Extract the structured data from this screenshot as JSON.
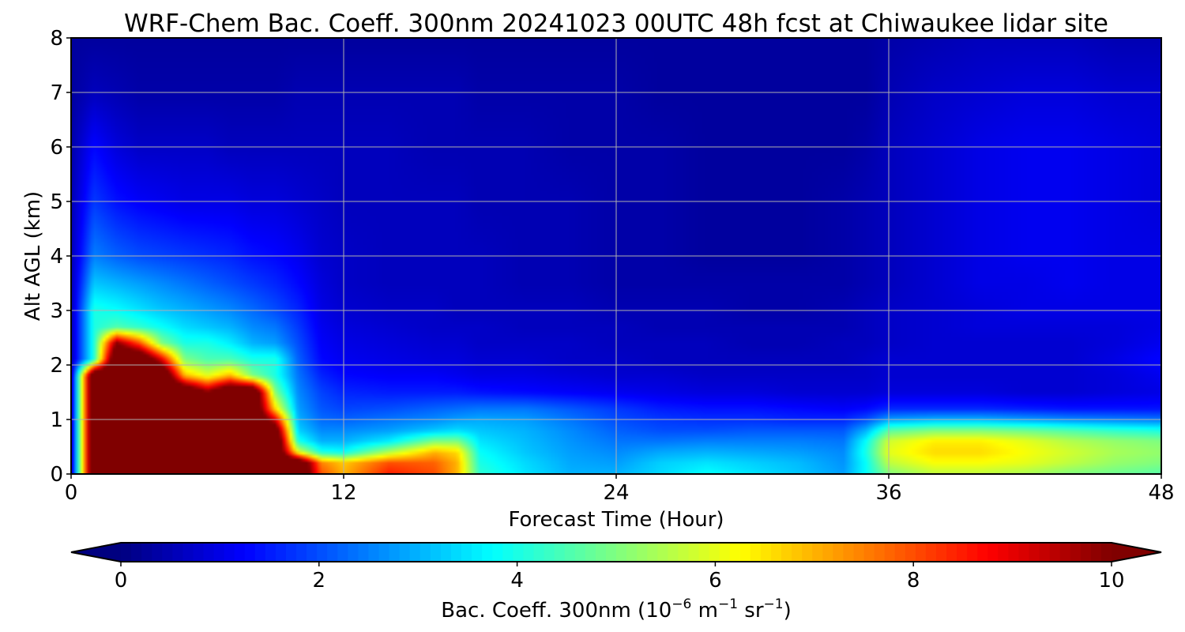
{
  "chart_data": {
    "type": "heatmap",
    "title": "WRF-Chem Bac. Coeff. 300nm  20241023 00UTC 48h fcst at Chiwaukee lidar site",
    "xlabel": "Forecast Time (Hour)",
    "ylabel": "Alt AGL (km)",
    "xlim": [
      0,
      48
    ],
    "ylim": [
      0,
      8
    ],
    "xticks": [
      0,
      12,
      24,
      36,
      48
    ],
    "yticks": [
      0,
      1,
      2,
      3,
      4,
      5,
      6,
      7,
      8
    ],
    "grid": true,
    "colormap": "jet",
    "colorbar": {
      "label_main": "Bac. Coeff. 300nm  (10",
      "label_exp1": "−6",
      "label_mid": " m",
      "label_exp2": "−1",
      "label_mid2": " sr",
      "label_exp3": "−1",
      "label_end": ")",
      "range": [
        0,
        10
      ],
      "ticks": [
        0,
        2,
        4,
        6,
        8,
        10
      ],
      "extend": "both",
      "orientation": "horizontal"
    },
    "x": [
      0,
      1,
      2,
      3,
      4,
      5,
      6,
      7,
      8,
      9,
      10,
      11,
      12,
      14,
      16,
      17,
      18,
      20,
      22,
      24,
      26,
      28,
      30,
      32,
      34,
      35,
      36,
      38,
      40,
      42,
      44,
      46,
      48
    ],
    "y": [
      0,
      0.2,
      0.4,
      0.6,
      0.8,
      1.0,
      1.2,
      1.5,
      1.8,
      2.1,
      2.4,
      2.7,
      3.0,
      3.5,
      4.0,
      5.0,
      6.0,
      7.0,
      8.0
    ],
    "z": [
      [
        0.5,
        12,
        12,
        12,
        12,
        12,
        12,
        12,
        12,
        12,
        12,
        8,
        7,
        8.5,
        8,
        7,
        4.2,
        3.5,
        3,
        3,
        3.4,
        3.8,
        3.5,
        3.2,
        2.8,
        3.8,
        5,
        5.6,
        5.6,
        5.4,
        5,
        4.8,
        4.6
      ],
      [
        0.5,
        12,
        12,
        12,
        12,
        12,
        12,
        12,
        12,
        12,
        12,
        7.5,
        6.8,
        8,
        7.8,
        7,
        4,
        3.4,
        2.9,
        2.8,
        3.3,
        3.5,
        3.3,
        3.1,
        2.7,
        3.8,
        5.6,
        6.2,
        6.2,
        6,
        5.6,
        5.2,
        5
      ],
      [
        0.5,
        12,
        12,
        12,
        12,
        12,
        12,
        12,
        12,
        12,
        6,
        4,
        3.8,
        5.5,
        7,
        6.6,
        3.8,
        3.2,
        2.8,
        2.6,
        2.9,
        3,
        2.9,
        2.8,
        2.6,
        4,
        6,
        6.6,
        6.6,
        6.2,
        5.8,
        5.4,
        5.2
      ],
      [
        0.5,
        12,
        12,
        12,
        12,
        12,
        12,
        12,
        12,
        12,
        4,
        3,
        3,
        3.6,
        5,
        5,
        3.5,
        3.1,
        2.7,
        2.4,
        2.4,
        2.5,
        2.5,
        2.5,
        2.4,
        3.8,
        5.8,
        6.4,
        6.4,
        6,
        5.5,
        5.2,
        5
      ],
      [
        0.5,
        12,
        12,
        12,
        12,
        12,
        12,
        12,
        12,
        11,
        3.3,
        2.6,
        2.6,
        2.8,
        3.2,
        3.4,
        3.2,
        3,
        2.6,
        2.2,
        2,
        2,
        2.1,
        2.1,
        2.1,
        3,
        4.6,
        5,
        5,
        4.8,
        4.5,
        4.2,
        4
      ],
      [
        0.5,
        12,
        12,
        12,
        12,
        12,
        12,
        12,
        12,
        9,
        3,
        2.3,
        2.2,
        2.4,
        2.6,
        2.8,
        2.9,
        2.8,
        2.4,
        2,
        1.8,
        1.7,
        1.7,
        1.6,
        1.6,
        2,
        2.8,
        3,
        3,
        2.8,
        2.6,
        2.5,
        2.4
      ],
      [
        0.5,
        12,
        12,
        12,
        12,
        12,
        12,
        12,
        12,
        6.5,
        2.8,
        2.1,
        1.9,
        2,
        2.2,
        2.3,
        2.4,
        2.4,
        2.1,
        1.8,
        1.5,
        1.4,
        1.4,
        1.3,
        1.2,
        1.3,
        1.6,
        1.6,
        1.6,
        1.5,
        1.4,
        1.4,
        1.4
      ],
      [
        0.5,
        12,
        12,
        12,
        12,
        12,
        10,
        12,
        12,
        5,
        2.6,
        1.9,
        1.6,
        1.5,
        1.5,
        1.5,
        1.4,
        1.3,
        1.2,
        1.1,
        1,
        0.9,
        0.9,
        0.8,
        0.8,
        0.8,
        0.9,
        0.9,
        0.9,
        0.8,
        0.8,
        0.9,
        1
      ],
      [
        0.5,
        12,
        12,
        12,
        12,
        7,
        6,
        7,
        5,
        4,
        2.4,
        1.6,
        1.3,
        1.2,
        1.2,
        1.1,
        1,
        1,
        0.9,
        0.8,
        0.8,
        0.7,
        0.7,
        0.7,
        0.7,
        0.7,
        0.8,
        0.8,
        0.8,
        0.8,
        0.8,
        0.9,
        1.1
      ],
      [
        0.5,
        4,
        12,
        12,
        9,
        5,
        4.5,
        4.5,
        4,
        4,
        2.2,
        1.3,
        1.1,
        1,
        0.9,
        0.9,
        0.8,
        0.8,
        0.7,
        0.7,
        0.6,
        0.6,
        0.6,
        0.6,
        0.6,
        0.7,
        0.8,
        0.8,
        0.8,
        0.8,
        0.8,
        1,
        1.3
      ],
      [
        0.5,
        4,
        10,
        8,
        5,
        4,
        4,
        3.6,
        3,
        2.8,
        2,
        1.2,
        1,
        0.9,
        0.8,
        0.8,
        0.7,
        0.7,
        0.7,
        0.6,
        0.6,
        0.6,
        0.5,
        0.5,
        0.6,
        0.6,
        0.7,
        0.8,
        0.8,
        0.8,
        0.8,
        0.9,
        1.1
      ],
      [
        0.5,
        4,
        4.5,
        4.2,
        3.8,
        3.4,
        3.2,
        3,
        2.6,
        2.4,
        1.8,
        1.1,
        0.9,
        0.8,
        0.7,
        0.7,
        0.7,
        0.6,
        0.6,
        0.6,
        0.5,
        0.5,
        0.5,
        0.5,
        0.5,
        0.6,
        0.7,
        0.8,
        0.9,
        0.9,
        0.9,
        0.9,
        1
      ],
      [
        0.5,
        4,
        3.8,
        3.5,
        3.2,
        3,
        2.8,
        2.6,
        2.3,
        2,
        1.6,
        1,
        0.8,
        0.7,
        0.7,
        0.6,
        0.6,
        0.6,
        0.6,
        0.5,
        0.5,
        0.5,
        0.4,
        0.4,
        0.5,
        0.6,
        0.7,
        0.8,
        0.9,
        1,
        1,
        1,
        1
      ],
      [
        0.5,
        3.2,
        3,
        2.8,
        2.6,
        2.4,
        2.2,
        2,
        1.8,
        1.6,
        1.3,
        0.9,
        0.7,
        0.6,
        0.6,
        0.6,
        0.6,
        0.5,
        0.5,
        0.4,
        0.4,
        0.4,
        0.4,
        0.4,
        0.4,
        0.5,
        0.6,
        0.8,
        1,
        1,
        1.1,
        1,
        1
      ],
      [
        0.5,
        2.5,
        2.2,
        2,
        1.9,
        1.8,
        1.7,
        1.6,
        1.4,
        1.3,
        1.1,
        0.8,
        0.7,
        0.6,
        0.6,
        0.6,
        0.6,
        0.5,
        0.5,
        0.4,
        0.4,
        0.3,
        0.3,
        0.3,
        0.4,
        0.5,
        0.6,
        0.8,
        1,
        1.1,
        1.1,
        1,
        1
      ],
      [
        0.5,
        1.8,
        1.4,
        1.2,
        1.1,
        1,
        1,
        1,
        0.9,
        0.9,
        0.8,
        0.7,
        0.6,
        0.6,
        0.6,
        0.6,
        0.5,
        0.5,
        0.5,
        0.4,
        0.4,
        0.3,
        0.3,
        0.3,
        0.4,
        0.5,
        0.6,
        0.8,
        1,
        1.1,
        1.1,
        1,
        0.9
      ],
      [
        0.4,
        1.3,
        0.9,
        0.7,
        0.7,
        0.7,
        0.7,
        0.6,
        0.6,
        0.6,
        0.6,
        0.6,
        0.6,
        0.6,
        0.5,
        0.5,
        0.5,
        0.5,
        0.4,
        0.4,
        0.4,
        0.3,
        0.3,
        0.3,
        0.3,
        0.4,
        0.6,
        0.8,
        1,
        1.1,
        1.1,
        1,
        0.9
      ],
      [
        0.3,
        0.6,
        0.5,
        0.4,
        0.4,
        0.4,
        0.4,
        0.4,
        0.4,
        0.4,
        0.5,
        0.5,
        0.5,
        0.5,
        0.5,
        0.5,
        0.4,
        0.4,
        0.4,
        0.4,
        0.3,
        0.3,
        0.3,
        0.3,
        0.3,
        0.3,
        0.5,
        0.7,
        0.8,
        0.9,
        0.9,
        0.8,
        0.8
      ],
      [
        0.3,
        0.3,
        0.3,
        0.3,
        0.3,
        0.3,
        0.3,
        0.3,
        0.3,
        0.3,
        0.3,
        0.3,
        0.3,
        0.3,
        0.3,
        0.3,
        0.3,
        0.3,
        0.3,
        0.3,
        0.3,
        0.3,
        0.3,
        0.3,
        0.3,
        0.3,
        0.4,
        0.5,
        0.6,
        0.6,
        0.6,
        0.5,
        0.5
      ]
    ]
  }
}
